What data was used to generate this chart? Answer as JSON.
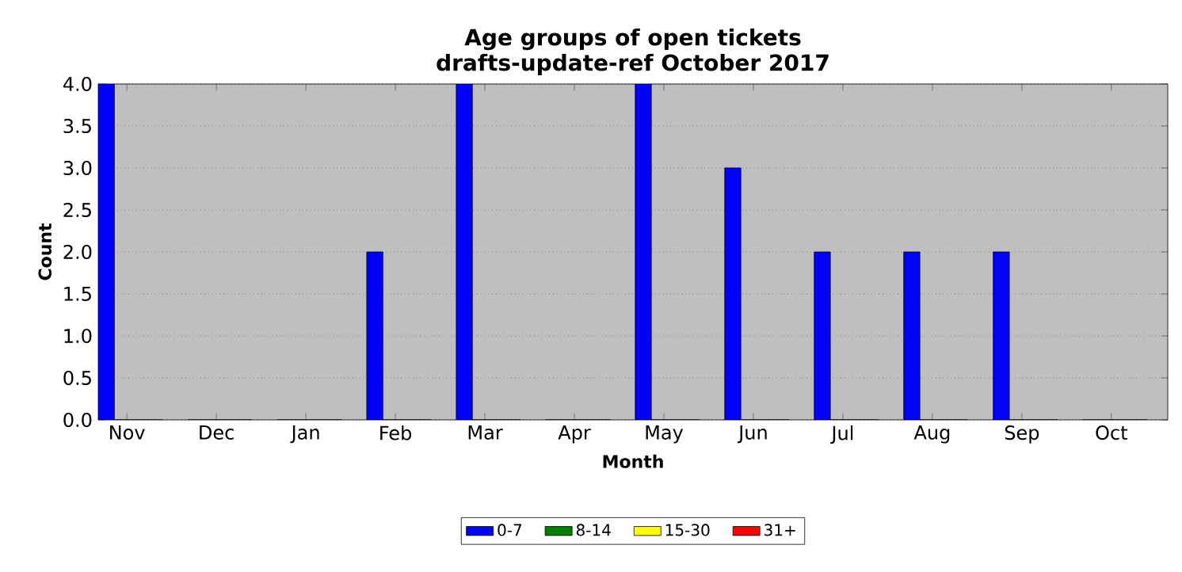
{
  "chart_data": {
    "type": "bar",
    "title": "Age groups of open tickets",
    "subtitle": "drafts-update-ref October 2017",
    "xlabel": "Month",
    "ylabel": "Count",
    "categories": [
      "Nov",
      "Dec",
      "Jan",
      "Feb",
      "Mar",
      "Apr",
      "May",
      "Jun",
      "Jul",
      "Aug",
      "Sep",
      "Oct"
    ],
    "series": [
      {
        "name": "0-7",
        "color": "#0000ff",
        "values": [
          4,
          0,
          0,
          2,
          4,
          0,
          4,
          3,
          2,
          2,
          2,
          0
        ]
      },
      {
        "name": "8-14",
        "color": "#008000",
        "values": [
          0,
          0,
          0,
          0,
          0,
          0,
          0,
          0,
          0,
          0,
          0,
          0
        ]
      },
      {
        "name": "15-30",
        "color": "#ffff00",
        "values": [
          0,
          0,
          0,
          0,
          0,
          0,
          0,
          0,
          0,
          0,
          0,
          0
        ]
      },
      {
        "name": "31+",
        "color": "#ff0000",
        "values": [
          0,
          0,
          0,
          0,
          0,
          0,
          0,
          0,
          0,
          0,
          0,
          0
        ]
      }
    ],
    "ylim": [
      0,
      4
    ],
    "yticks": [
      {
        "value": 0,
        "label": "0.0"
      },
      {
        "value": 0.5,
        "label": "0.5"
      },
      {
        "value": 1,
        "label": "1.0"
      },
      {
        "value": 1.5,
        "label": "1.5"
      },
      {
        "value": 2,
        "label": "2.0"
      },
      {
        "value": 2.5,
        "label": "2.5"
      },
      {
        "value": 3,
        "label": "3.0"
      },
      {
        "value": 3.5,
        "label": "3.5"
      },
      {
        "value": 4,
        "label": "4.0"
      }
    ],
    "grid": "y",
    "legend": "bottom"
  }
}
